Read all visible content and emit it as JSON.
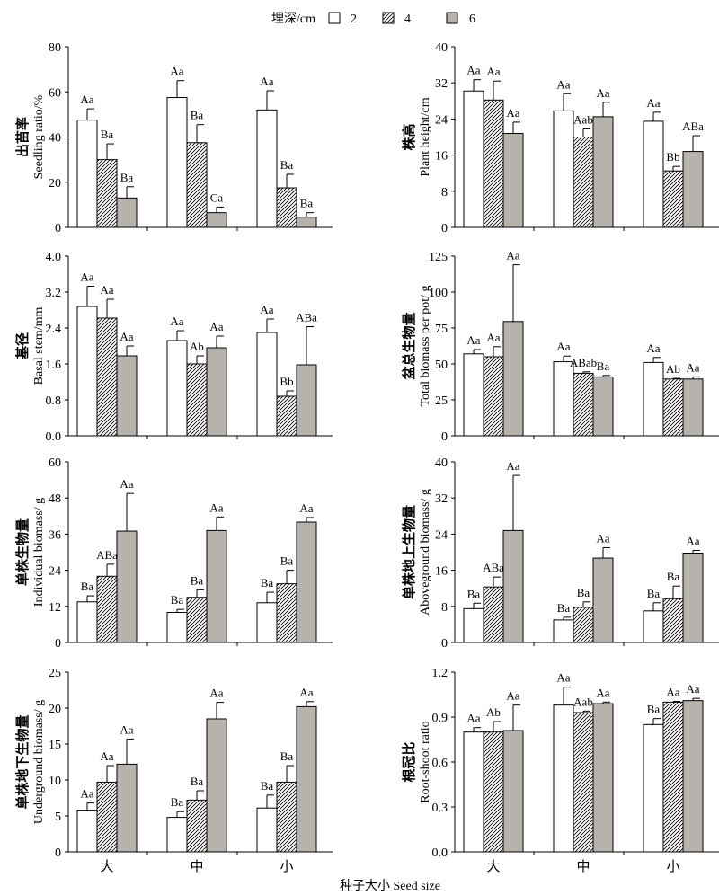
{
  "legend": {
    "title": "埋深/cm",
    "entries": [
      {
        "label": "2",
        "style": "white"
      },
      {
        "label": "4",
        "style": "hatch"
      },
      {
        "label": "6",
        "style": "gray"
      }
    ]
  },
  "colors": {
    "gray": "#b8b2ac",
    "white": "#ffffff",
    "line": "#000000"
  },
  "categories": [
    "大",
    "中",
    "小"
  ],
  "xlabel": "种子大小 Seed size",
  "chart_data": [
    {
      "type": "bar",
      "ylabel_cn": "出苗率",
      "ylabel_en": "Seedling ratio/%",
      "ylim": [
        0,
        80
      ],
      "yticks": [
        0,
        20,
        40,
        60,
        80
      ],
      "categories": [
        "大",
        "中",
        "小"
      ],
      "series": [
        {
          "name": "2",
          "values": [
            47.5,
            57.5,
            52
          ],
          "errors": [
            5,
            7.5,
            8.5
          ],
          "letters": [
            "Aa",
            "Aa",
            "Aa"
          ]
        },
        {
          "name": "4",
          "values": [
            30,
            37.5,
            17.5
          ],
          "errors": [
            7,
            8,
            6
          ],
          "letters": [
            "Ba",
            "Ba",
            "Ba"
          ]
        },
        {
          "name": "6",
          "values": [
            13,
            6.5,
            4.5
          ],
          "errors": [
            5,
            2.5,
            2
          ],
          "letters": [
            "Ba",
            "Ca",
            "Ba"
          ]
        }
      ]
    },
    {
      "type": "bar",
      "ylabel_cn": "株高",
      "ylabel_en": "Plant height/cm",
      "ylim": [
        0,
        40
      ],
      "yticks": [
        0,
        8,
        16,
        24,
        32,
        40
      ],
      "categories": [
        "大",
        "中",
        "小"
      ],
      "series": [
        {
          "name": "2",
          "values": [
            30.2,
            25.8,
            23.5
          ],
          "errors": [
            2.5,
            3.8,
            2
          ],
          "letters": [
            "Aa",
            "Aa",
            "Aa"
          ]
        },
        {
          "name": "4",
          "values": [
            28.2,
            20,
            12.5
          ],
          "errors": [
            4.2,
            1.8,
            1
          ],
          "letters": [
            "Aa",
            "Aab",
            "Bb"
          ]
        },
        {
          "name": "6",
          "values": [
            20.8,
            24.5,
            16.8
          ],
          "errors": [
            2.5,
            3.2,
            3.5
          ],
          "letters": [
            "Aa",
            "Aa",
            "ABa"
          ]
        }
      ]
    },
    {
      "type": "bar",
      "ylabel_cn": "基径",
      "ylabel_en": "Basal stem/mm",
      "ylim": [
        0,
        4.0
      ],
      "yticks": [
        0,
        0.8,
        1.6,
        2.4,
        3.2,
        4.0
      ],
      "categories": [
        "大",
        "中",
        "小"
      ],
      "series": [
        {
          "name": "2",
          "values": [
            2.88,
            2.12,
            2.3
          ],
          "errors": [
            0.45,
            0.22,
            0.3
          ],
          "letters": [
            "Aa",
            "Aa",
            "Aa"
          ]
        },
        {
          "name": "4",
          "values": [
            2.62,
            1.6,
            0.88
          ],
          "errors": [
            0.42,
            0.18,
            0.12
          ],
          "letters": [
            "Aa",
            "Ab",
            "Bb"
          ]
        },
        {
          "name": "6",
          "values": [
            1.78,
            1.96,
            1.58
          ],
          "errors": [
            0.22,
            0.26,
            0.85
          ],
          "letters": [
            "Aa",
            "Aa",
            "ABa"
          ]
        }
      ]
    },
    {
      "type": "bar",
      "ylabel_cn": "盆总生物量",
      "ylabel_en": "Total biomass per pot/ g",
      "ylim": [
        0,
        125
      ],
      "yticks": [
        0,
        25,
        50,
        75,
        100,
        125
      ],
      "categories": [
        "大",
        "中",
        "小"
      ],
      "series": [
        {
          "name": "2",
          "values": [
            57,
            51.5,
            51
          ],
          "errors": [
            3,
            4,
            3.5
          ],
          "letters": [
            "Aa",
            "Aa",
            "Aa"
          ]
        },
        {
          "name": "4",
          "values": [
            55,
            43.5,
            39.5
          ],
          "errors": [
            7,
            1,
            0.5
          ],
          "letters": [
            "Aa",
            "ABab",
            "Ab"
          ]
        },
        {
          "name": "6",
          "values": [
            79.5,
            41,
            39.5
          ],
          "errors": [
            39.5,
            1,
            1.5
          ],
          "letters": [
            "Aa",
            "Ba",
            "Aa"
          ]
        }
      ]
    },
    {
      "type": "bar",
      "ylabel_cn": "单株生物量",
      "ylabel_en": "Individual biomass/ g",
      "ylim": [
        0,
        60
      ],
      "yticks": [
        0,
        12,
        24,
        36,
        48,
        60
      ],
      "categories": [
        "大",
        "中",
        "小"
      ],
      "series": [
        {
          "name": "2",
          "values": [
            13.5,
            10,
            13.2
          ],
          "errors": [
            2,
            1,
            3.5
          ],
          "letters": [
            "Ba",
            "Ba",
            "Ba"
          ]
        },
        {
          "name": "4",
          "values": [
            22,
            15,
            19.5
          ],
          "errors": [
            4,
            2.5,
            4.5
          ],
          "letters": [
            "ABa",
            "Ba",
            "Ba"
          ]
        },
        {
          "name": "6",
          "values": [
            37,
            37.2,
            40
          ],
          "errors": [
            12.5,
            4.5,
            1.5
          ],
          "letters": [
            "Aa",
            "Aa",
            "Aa"
          ]
        }
      ]
    },
    {
      "type": "bar",
      "ylabel_cn": "单株地上生物量",
      "ylabel_en": "Aboveground biomass/ g",
      "ylim": [
        0,
        40
      ],
      "yticks": [
        0,
        8,
        16,
        24,
        32,
        40
      ],
      "categories": [
        "大",
        "中",
        "小"
      ],
      "series": [
        {
          "name": "2",
          "values": [
            7.5,
            5,
            7
          ],
          "errors": [
            1.2,
            0.6,
            1.8
          ],
          "letters": [
            "Ba",
            "Ba",
            "Ba"
          ]
        },
        {
          "name": "4",
          "values": [
            12.3,
            7.8,
            9.7
          ],
          "errors": [
            2.2,
            1.2,
            2.8
          ],
          "letters": [
            "ABa",
            "Ba",
            "Ba"
          ]
        },
        {
          "name": "6",
          "values": [
            24.8,
            18.7,
            19.8
          ],
          "errors": [
            12.2,
            2.3,
            0.6
          ],
          "letters": [
            "Aa",
            "Aa",
            "Aa"
          ]
        }
      ]
    },
    {
      "type": "bar",
      "ylabel_cn": "单株地下生物量",
      "ylabel_en": "Underground biomass/ g",
      "ylim": [
        0,
        25
      ],
      "yticks": [
        0,
        5,
        10,
        15,
        20,
        25
      ],
      "categories": [
        "大",
        "中",
        "小"
      ],
      "series": [
        {
          "name": "2",
          "values": [
            5.8,
            4.8,
            6.1
          ],
          "errors": [
            1,
            0.8,
            1.8
          ],
          "letters": [
            "Aa",
            "Ba",
            "Ba"
          ]
        },
        {
          "name": "4",
          "values": [
            9.7,
            7.2,
            9.7
          ],
          "errors": [
            2.3,
            1.3,
            2.3
          ],
          "letters": [
            "Aa",
            "Ba",
            "Ba"
          ]
        },
        {
          "name": "6",
          "values": [
            12.2,
            18.5,
            20.2
          ],
          "errors": [
            3.5,
            2.3,
            0.7
          ],
          "letters": [
            "Aa",
            "Aa",
            "Aa"
          ]
        }
      ]
    },
    {
      "type": "bar",
      "ylabel_cn": "根冠比",
      "ylabel_en": "Root-shoot ratio",
      "ylim": [
        0,
        1.2
      ],
      "yticks": [
        0,
        0.3,
        0.6,
        0.9,
        1.2
      ],
      "categories": [
        "大",
        "中",
        "小"
      ],
      "series": [
        {
          "name": "2",
          "values": [
            0.8,
            0.98,
            0.85
          ],
          "errors": [
            0.03,
            0.12,
            0.04
          ],
          "letters": [
            "Aa",
            "Aa",
            "Ba"
          ]
        },
        {
          "name": "4",
          "values": [
            0.8,
            0.93,
            1.0
          ],
          "errors": [
            0.07,
            0.01,
            0.005
          ],
          "letters": [
            "Ab",
            "Aab",
            "Aa"
          ]
        },
        {
          "name": "6",
          "values": [
            0.81,
            0.99,
            1.01
          ],
          "errors": [
            0.17,
            0.01,
            0.015
          ],
          "letters": [
            "Aa",
            "Aa",
            "Aa"
          ]
        }
      ]
    }
  ]
}
